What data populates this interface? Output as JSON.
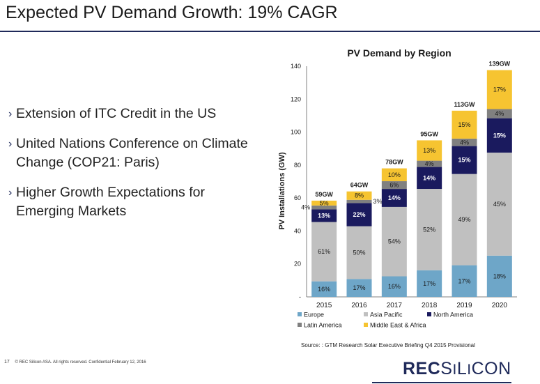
{
  "slide": {
    "title": "Expected PV Demand Growth: 19% CAGR",
    "bullets": [
      "Extension of ITC Credit in the US",
      "United Nations Conference on Climate Change (COP21: Paris)",
      "Higher Growth Expectations for Emerging Markets"
    ],
    "bullet_glyph": "›",
    "page_number": "17",
    "footer_text": "© REC Silicon ASA. All rights reserved. Confidential  February 12, 2016",
    "logo_text": "RECSILICON"
  },
  "chart_data": {
    "type": "bar",
    "stacked": true,
    "title": "PV Demand by Region",
    "ylabel": "PV Installations (GW)",
    "xlabel": "",
    "ylim": [
      0,
      140
    ],
    "yticks": [
      0,
      20,
      40,
      60,
      80,
      100,
      120,
      140
    ],
    "ytick_labels": [
      "-",
      "20",
      "40",
      "60",
      "80",
      "100",
      "120",
      "140"
    ],
    "grid": false,
    "legend_position": "bottom",
    "categories": [
      "2015",
      "2016",
      "2017",
      "2018",
      "2019",
      "2020"
    ],
    "totals": [
      59,
      64,
      78,
      95,
      113,
      139
    ],
    "total_labels": [
      "59GW",
      "64GW",
      "78GW",
      "95GW",
      "113GW",
      "139GW"
    ],
    "series": [
      {
        "name": "Europe",
        "color": "#6ea6c8",
        "text_color": "#1a1a1a",
        "shares": [
          16,
          17,
          16,
          17,
          17,
          18
        ],
        "labels": [
          "16%",
          "17%",
          "16%",
          "17%",
          "17%",
          "18%"
        ],
        "label_position": [
          "inside",
          "inside",
          "inside",
          "inside",
          "inside",
          "inside"
        ]
      },
      {
        "name": "Asia Pacific",
        "color": "#c0c0c0",
        "text_color": "#1a1a1a",
        "shares": [
          61,
          50,
          54,
          52,
          49,
          45
        ],
        "labels": [
          "61%",
          "50%",
          "54%",
          "52%",
          "49%",
          "45%"
        ],
        "label_position": [
          "inside",
          "inside",
          "inside",
          "inside",
          "inside",
          "inside"
        ]
      },
      {
        "name": "North America",
        "color": "#1a1a5e",
        "text_color": "#ffffff",
        "shares": [
          13,
          22,
          14,
          14,
          15,
          15
        ],
        "labels": [
          "13%",
          "22%",
          "14%",
          "14%",
          "15%",
          "15%"
        ],
        "label_position": [
          "inside",
          "inside",
          "inside",
          "inside",
          "inside",
          "inside"
        ]
      },
      {
        "name": "Latin America",
        "color": "#808080",
        "text_color": "#1a1a1a",
        "shares": [
          4,
          3,
          6,
          4,
          4,
          4
        ],
        "labels": [
          "4%",
          "3%",
          "6%",
          "4%",
          "4%",
          "4%"
        ],
        "label_position": [
          "left",
          "right",
          "inside",
          "inside",
          "inside",
          "inside"
        ]
      },
      {
        "name": "Middle East & Africa",
        "color": "#f6c431",
        "text_color": "#1a1a1a",
        "shares": [
          5,
          8,
          10,
          13,
          15,
          17
        ],
        "labels": [
          "5%",
          "8%",
          "10%",
          "13%",
          "15%",
          "17%"
        ],
        "label_position": [
          "inside",
          "inside",
          "inside",
          "inside",
          "inside",
          "inside"
        ]
      }
    ],
    "source": "Source: : GTM Research Solar Executive Briefing Q4 2015 Provisional"
  }
}
